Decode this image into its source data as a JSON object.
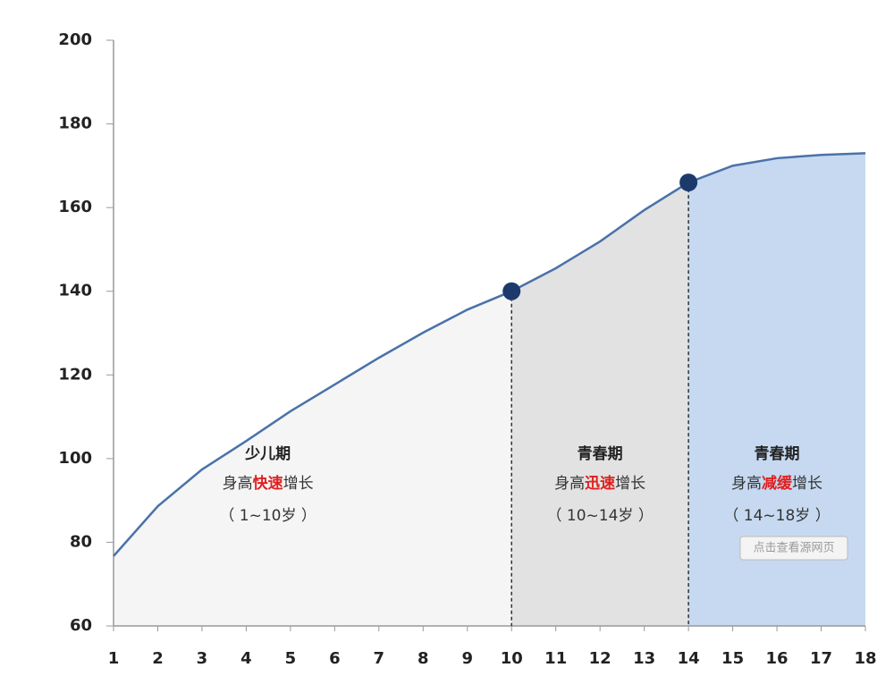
{
  "chart_data": {
    "type": "area",
    "x": [
      1,
      2,
      3,
      4,
      5,
      6,
      7,
      8,
      9,
      10,
      11,
      12,
      13,
      14,
      15,
      16,
      17,
      18
    ],
    "values": [
      76.7,
      88.6,
      97.4,
      104.2,
      111.3,
      117.7,
      124.1,
      130.1,
      135.6,
      140,
      145.5,
      151.9,
      159.4,
      166,
      170,
      171.8,
      172.6,
      173
    ],
    "color": "#4a72a8",
    "xlim": [
      1,
      18
    ],
    "ylim": [
      60,
      200
    ],
    "yticks": [
      60,
      80,
      100,
      120,
      140,
      160,
      180,
      200
    ],
    "regions": [
      {
        "from": 1,
        "to": 10,
        "color": "#f5f5f5",
        "title": "少儿期",
        "parts": [
          {
            "text": "身高",
            "color": "#333333"
          },
          {
            "text": "快速",
            "color": "#e02020"
          },
          {
            "text": "增长",
            "color": "#333333"
          }
        ],
        "range": "（ 1~10岁 ）"
      },
      {
        "from": 10,
        "to": 14,
        "color": "#e2e2e2",
        "title": "青春期",
        "parts": [
          {
            "text": "身高",
            "color": "#333333"
          },
          {
            "text": "迅速",
            "color": "#e02020"
          },
          {
            "text": "增长",
            "color": "#333333"
          }
        ],
        "range": "（ 10~14岁 ）"
      },
      {
        "from": 14,
        "to": 18,
        "color": "#c6d9f1",
        "title": "青春期",
        "parts": [
          {
            "text": "身高",
            "color": "#333333"
          },
          {
            "text": "减缓",
            "color": "#e02020"
          },
          {
            "text": "增长",
            "color": "#333333"
          }
        ],
        "range": "（ 14~18岁 ）"
      }
    ],
    "watermark": "点击查看源网页"
  }
}
